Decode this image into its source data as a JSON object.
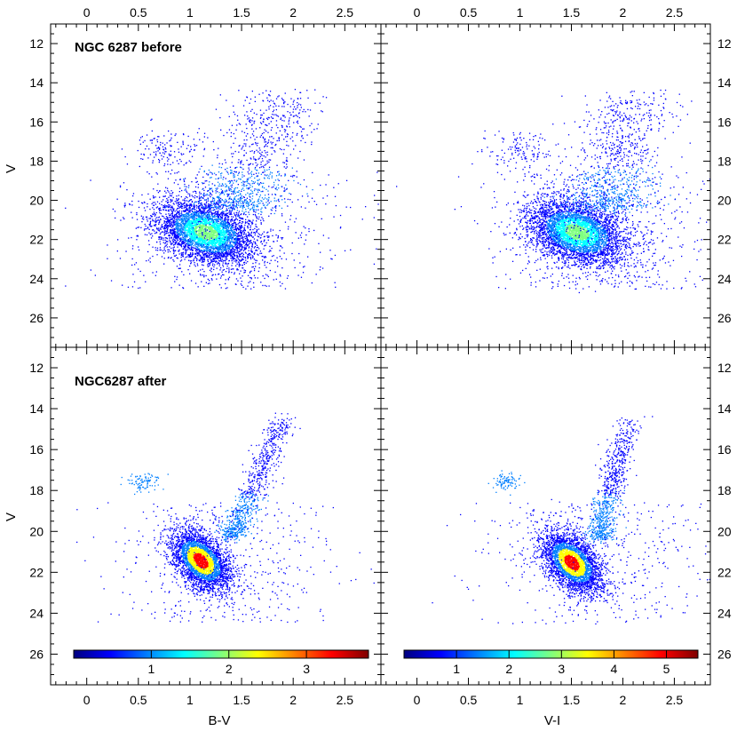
{
  "figure": {
    "colors": {
      "axis": "#000000",
      "background": "#ffffff"
    },
    "colormap": [
      "#00007f",
      "#0000ff",
      "#007fff",
      "#00ffff",
      "#7fff7f",
      "#ffff00",
      "#ff7f00",
      "#ff0000",
      "#7f0000"
    ]
  },
  "chart_data": [
    {
      "type": "scatter",
      "panel": "top-left",
      "title": "NGC 6287 before",
      "xlabel": "",
      "ylabel": "V",
      "xlim": [
        -0.35,
        2.85
      ],
      "ylim": [
        27.5,
        11
      ],
      "ylim_note": "inverted magnitude axis",
      "x_ticks": [
        "0",
        "0.5",
        "1",
        "1.5",
        "2",
        "2.5"
      ],
      "y_ticks": [
        "12",
        "14",
        "16",
        "18",
        "20",
        "22",
        "24",
        "26"
      ],
      "density": {
        "main_sequence_turnoff": {
          "x": 1.15,
          "y": 21.6
        },
        "horizontal_branch": {
          "x": 0.75,
          "y": 17.4
        },
        "red_giant_branch_tip": {
          "x": 1.9,
          "y": 14.5
        }
      }
    },
    {
      "type": "scatter",
      "panel": "top-right",
      "title": "",
      "xlabel": "",
      "ylabel": "",
      "xlim": [
        -0.35,
        2.85
      ],
      "ylim": [
        27.5,
        11
      ],
      "x_ticks": [
        "0",
        "0.5",
        "1",
        "1.5",
        "2",
        "2.5"
      ],
      "y_ticks": [
        "12",
        "14",
        "16",
        "18",
        "20",
        "22",
        "24",
        "26"
      ],
      "density": {
        "main_sequence_turnoff": {
          "x": 1.55,
          "y": 21.6
        },
        "horizontal_branch": {
          "x": 1.0,
          "y": 17.5
        },
        "red_giant_branch_tip": {
          "x": 2.1,
          "y": 14.5
        }
      }
    },
    {
      "type": "scatter",
      "panel": "bottom-left",
      "title": "NGC6287 after",
      "xlabel": "B-V",
      "ylabel": "V",
      "xlim": [
        -0.35,
        2.85
      ],
      "ylim": [
        27.5,
        11
      ],
      "x_ticks": [
        "0",
        "0.5",
        "1",
        "1.5",
        "2",
        "2.5"
      ],
      "y_ticks": [
        "12",
        "14",
        "16",
        "18",
        "20",
        "22",
        "24",
        "26"
      ],
      "colorbar": {
        "ticks": [
          "1",
          "2",
          "3"
        ],
        "range": [
          0,
          3.8
        ]
      },
      "density": {
        "main_sequence_turnoff": {
          "x": 1.1,
          "y": 21.4
        },
        "horizontal_branch": {
          "x": 0.55,
          "y": 17.6
        },
        "red_giant_branch_tip": {
          "x": 1.9,
          "y": 14.5
        }
      }
    },
    {
      "type": "scatter",
      "panel": "bottom-right",
      "title": "",
      "xlabel": "V-I",
      "ylabel": "",
      "xlim": [
        -0.35,
        2.85
      ],
      "ylim": [
        27.5,
        11
      ],
      "x_ticks": [
        "0",
        "0.5",
        "1",
        "1.5",
        "2",
        "2.5"
      ],
      "y_ticks": [
        "12",
        "14",
        "16",
        "18",
        "20",
        "22",
        "24",
        "26"
      ],
      "colorbar": {
        "ticks": [
          "1",
          "2",
          "3",
          "4",
          "5"
        ],
        "range": [
          0,
          5.6
        ]
      },
      "density": {
        "main_sequence_turnoff": {
          "x": 1.5,
          "y": 21.5
        },
        "horizontal_branch": {
          "x": 0.85,
          "y": 17.6
        },
        "red_giant_branch_tip": {
          "x": 2.05,
          "y": 14.5
        }
      }
    }
  ]
}
